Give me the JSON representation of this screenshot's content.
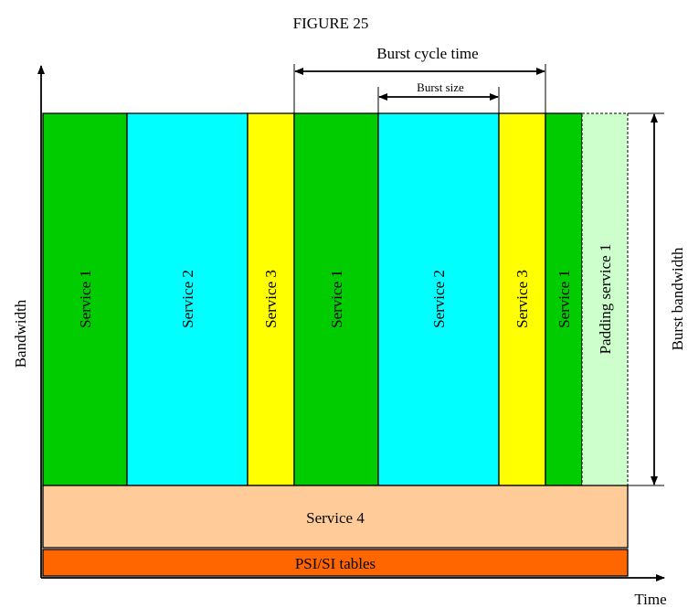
{
  "figure": {
    "title": "FIGURE 25"
  },
  "axes": {
    "y_label": "Bandwidth",
    "x_label": "Time"
  },
  "annotations": {
    "burst_cycle_time": "Burst cycle time",
    "burst_size": "Burst size",
    "burst_bandwidth": "Burst bandwidth"
  },
  "colors": {
    "service1": "#00cc00",
    "service2": "#00ffff",
    "service3": "#ffff00",
    "padding": "#ccffcc",
    "service4": "#ffcc99",
    "psi_si": "#ff6600"
  },
  "bursts": [
    {
      "label": "Service 1",
      "service": "service1"
    },
    {
      "label": "Service 2",
      "service": "service2"
    },
    {
      "label": "Service 3",
      "service": "service3"
    },
    {
      "label": "Service 1",
      "service": "service1"
    },
    {
      "label": "Service 2",
      "service": "service2"
    },
    {
      "label": "Service 3",
      "service": "service3"
    },
    {
      "label": "Service 1",
      "service": "service1"
    },
    {
      "label": "Padding service 1",
      "service": "padding"
    }
  ],
  "bands": [
    {
      "label": "Service 4",
      "service": "service4"
    },
    {
      "label": "PSI/SI tables",
      "service": "psi_si"
    }
  ]
}
